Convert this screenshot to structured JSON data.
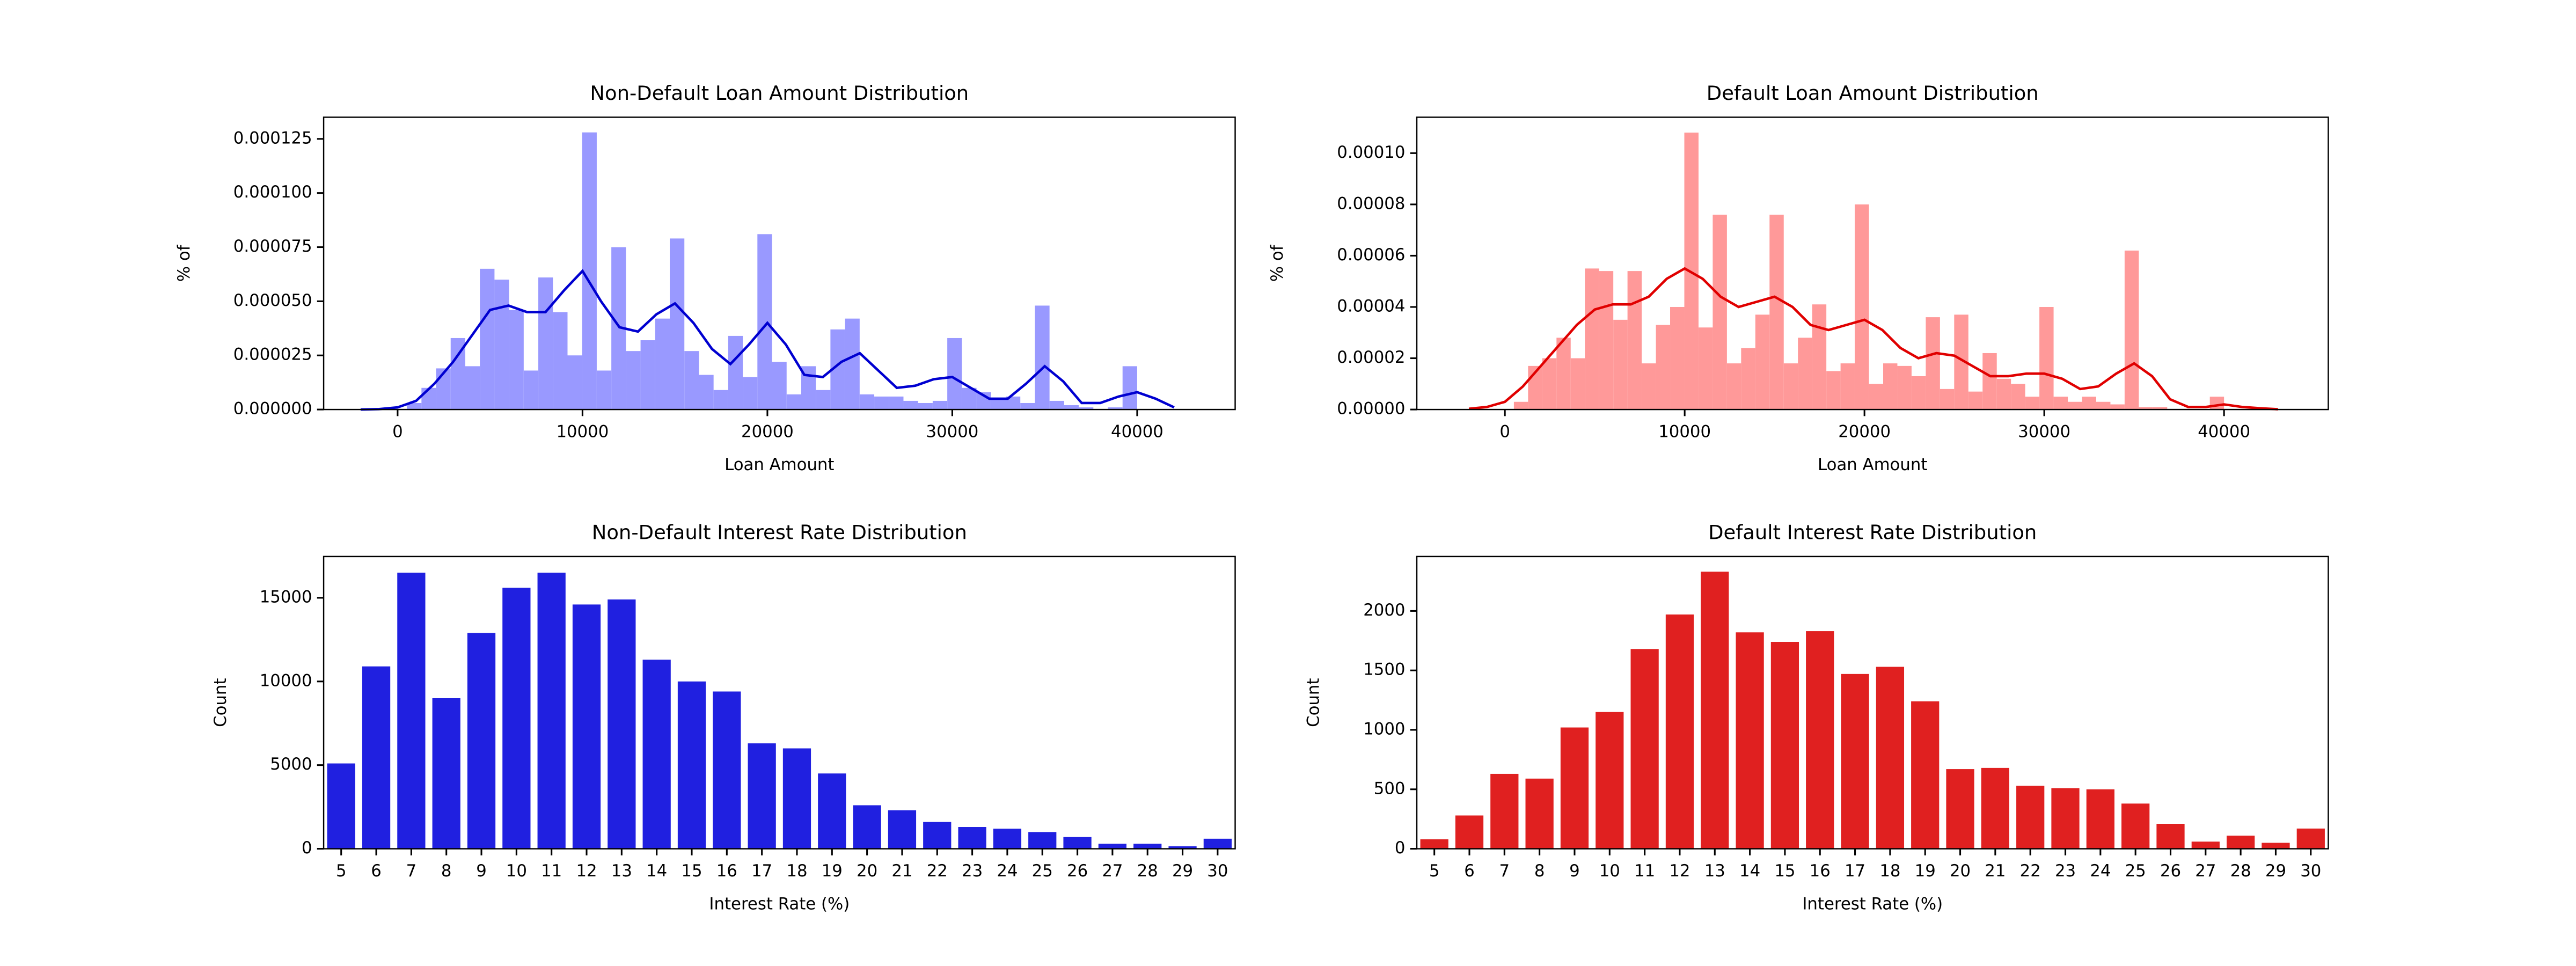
{
  "chart_data": [
    {
      "type": "histogram",
      "title": "Non-Default Loan Amount Distribution",
      "xlabel": "Loan Amount",
      "ylabel": "% of",
      "color": "#9999ff",
      "bins": [
        500,
        1290,
        2080,
        2870,
        3660,
        4450,
        5240,
        6030,
        6820,
        7610,
        8400,
        9190,
        9980,
        10770,
        11560,
        12350,
        13140,
        13930,
        14720,
        15510,
        16300,
        17090,
        17880,
        18670,
        19460,
        20250,
        21040,
        21830,
        22620,
        23410,
        24200,
        24990,
        25780,
        26570,
        27360,
        28150,
        28940,
        29730,
        30520,
        31310,
        32100,
        32890,
        33680,
        34470,
        35260,
        36050,
        36840,
        37630,
        38420,
        39210,
        40000
      ],
      "values": [
        3e-06,
        1e-05,
        1.9e-05,
        3.3e-05,
        2e-05,
        6.5e-05,
        6e-05,
        4.6e-05,
        1.8e-05,
        6.1e-05,
        4.5e-05,
        2.5e-05,
        0.000128,
        1.8e-05,
        7.5e-05,
        2.7e-05,
        3.2e-05,
        4.2e-05,
        7.9e-05,
        2.7e-05,
        1.6e-05,
        9e-06,
        3.4e-05,
        1.5e-05,
        8.1e-05,
        2.2e-05,
        7e-06,
        2e-05,
        9e-06,
        3.7e-05,
        4.2e-05,
        7e-06,
        6e-06,
        6e-06,
        4e-06,
        3e-06,
        4e-06,
        3.3e-05,
        1e-05,
        8e-06,
        5e-06,
        6e-06,
        3e-06,
        4.8e-05,
        4e-06,
        2e-06,
        1e-06,
        0,
        1e-06,
        2e-05
      ],
      "kde": {
        "color": "#0000d0",
        "x": [
          -2000,
          -1000,
          0,
          1000,
          2000,
          3000,
          4000,
          5000,
          6000,
          7000,
          8000,
          9000,
          10000,
          11000,
          12000,
          13000,
          14000,
          15000,
          16000,
          17000,
          18000,
          19000,
          20000,
          21000,
          22000,
          23000,
          24000,
          25000,
          26000,
          27000,
          28000,
          29000,
          30000,
          31000,
          32000,
          33000,
          34000,
          35000,
          36000,
          37000,
          38000,
          39000,
          40000,
          41000,
          42000
        ],
        "values": [
          0,
          2e-07,
          1e-06,
          4e-06,
          1.2e-05,
          2.2e-05,
          3.4e-05,
          4.6e-05,
          4.8e-05,
          4.5e-05,
          4.5e-05,
          5.5e-05,
          6.4e-05,
          5e-05,
          3.8e-05,
          3.6e-05,
          4.4e-05,
          4.9e-05,
          4e-05,
          2.8e-05,
          2.1e-05,
          3e-05,
          4e-05,
          3e-05,
          1.6e-05,
          1.5e-05,
          2.2e-05,
          2.6e-05,
          1.8e-05,
          1e-05,
          1.1e-05,
          1.4e-05,
          1.5e-05,
          1e-05,
          5e-06,
          5e-06,
          1.2e-05,
          2e-05,
          1.3e-05,
          3e-06,
          3e-06,
          6e-06,
          8e-06,
          5e-06,
          1e-06
        ]
      },
      "xlim": [
        -4000,
        45300
      ],
      "xticks": [
        0,
        10000,
        20000,
        30000,
        40000
      ],
      "ylim": [
        0,
        0.000135
      ],
      "yticks": [
        {
          "value": 0,
          "label": "0.000000"
        },
        {
          "value": 2.5e-05,
          "label": "0.000025"
        },
        {
          "value": 5e-05,
          "label": "0.000050"
        },
        {
          "value": 7.5e-05,
          "label": "0.000075"
        },
        {
          "value": 0.0001,
          "label": "0.000100"
        },
        {
          "value": 0.000125,
          "label": "0.000125"
        }
      ]
    },
    {
      "type": "histogram",
      "title": "Default Loan Amount Distribution",
      "xlabel": "Loan Amount",
      "ylabel": "% of",
      "color": "#ff9999",
      "bins": [
        500,
        1290,
        2080,
        2870,
        3660,
        4450,
        5240,
        6030,
        6820,
        7610,
        8400,
        9190,
        9980,
        10770,
        11560,
        12350,
        13140,
        13930,
        14720,
        15510,
        16300,
        17090,
        17880,
        18670,
        19460,
        20250,
        21040,
        21830,
        22620,
        23410,
        24200,
        24990,
        25780,
        26570,
        27360,
        28150,
        28940,
        29730,
        30520,
        31310,
        32100,
        32890,
        33680,
        34470,
        35260,
        36050,
        36840,
        37630,
        38420,
        39210,
        40000
      ],
      "values": [
        3e-06,
        1.7e-05,
        2e-05,
        2.8e-05,
        2e-05,
        5.5e-05,
        5.4e-05,
        3.5e-05,
        5.4e-05,
        1.8e-05,
        3.3e-05,
        4e-05,
        0.000108,
        3.2e-05,
        7.6e-05,
        1.8e-05,
        2.4e-05,
        3.7e-05,
        7.6e-05,
        1.8e-05,
        2.8e-05,
        4.1e-05,
        1.5e-05,
        1.8e-05,
        8e-05,
        1e-05,
        1.8e-05,
        1.7e-05,
        1.3e-05,
        3.6e-05,
        8e-06,
        3.7e-05,
        7e-06,
        2.2e-05,
        1.2e-05,
        1e-05,
        5e-06,
        4e-05,
        5e-06,
        3e-06,
        5e-06,
        3e-06,
        2e-06,
        6.2e-05,
        1e-06,
        1e-06,
        0,
        0,
        0,
        5e-06
      ],
      "kde": {
        "color": "#e00000",
        "x": [
          -2000,
          -1000,
          0,
          1000,
          2000,
          3000,
          4000,
          5000,
          6000,
          7000,
          8000,
          9000,
          10000,
          11000,
          12000,
          13000,
          14000,
          15000,
          16000,
          17000,
          18000,
          19000,
          20000,
          21000,
          22000,
          23000,
          24000,
          25000,
          26000,
          27000,
          28000,
          29000,
          30000,
          31000,
          32000,
          33000,
          34000,
          35000,
          36000,
          37000,
          38000,
          39000,
          40000,
          41000,
          42000,
          43000
        ],
        "values": [
          3e-07,
          1e-06,
          3e-06,
          9e-06,
          1.7e-05,
          2.5e-05,
          3.3e-05,
          3.9e-05,
          4.1e-05,
          4.1e-05,
          4.4e-05,
          5.1e-05,
          5.5e-05,
          5.1e-05,
          4.4e-05,
          4e-05,
          4.2e-05,
          4.4e-05,
          4e-05,
          3.3e-05,
          3.1e-05,
          3.3e-05,
          3.5e-05,
          3.1e-05,
          2.4e-05,
          2e-05,
          2.2e-05,
          2.1e-05,
          1.7e-05,
          1.3e-05,
          1.3e-05,
          1.4e-05,
          1.4e-05,
          1.2e-05,
          8e-06,
          9e-06,
          1.4e-05,
          1.8e-05,
          1.3e-05,
          4e-06,
          1e-06,
          1e-06,
          2e-06,
          1e-06,
          5e-07,
          1e-07
        ]
      },
      "xlim": [
        -4900,
        45800
      ],
      "xticks": [
        0,
        10000,
        20000,
        30000,
        40000
      ],
      "ylim": [
        0,
        0.000114
      ],
      "yticks": [
        {
          "value": 0,
          "label": "0.00000"
        },
        {
          "value": 2e-05,
          "label": "0.00002"
        },
        {
          "value": 4e-05,
          "label": "0.00004"
        },
        {
          "value": 6e-05,
          "label": "0.00006"
        },
        {
          "value": 8e-05,
          "label": "0.00008"
        },
        {
          "value": 0.0001,
          "label": "0.00010"
        }
      ]
    },
    {
      "type": "bar",
      "title": "Non-Default Interest Rate Distribution",
      "xlabel": "Interest Rate (%)",
      "ylabel": "Count",
      "color": "#2020e0",
      "categories": [
        "5",
        "6",
        "7",
        "8",
        "9",
        "10",
        "11",
        "12",
        "13",
        "14",
        "15",
        "16",
        "17",
        "18",
        "19",
        "20",
        "21",
        "22",
        "23",
        "24",
        "25",
        "26",
        "27",
        "28",
        "29",
        "30"
      ],
      "values": [
        5100,
        10900,
        16500,
        9000,
        12900,
        15600,
        16500,
        14600,
        14900,
        11300,
        10000,
        9400,
        6300,
        6000,
        4500,
        2600,
        2300,
        1600,
        1300,
        1200,
        1000,
        700,
        300,
        300,
        150,
        600
      ],
      "ylim": [
        0,
        17470
      ],
      "yticks": [
        0,
        5000,
        10000,
        15000
      ]
    },
    {
      "type": "bar",
      "title": "Default Interest Rate Distribution",
      "xlabel": "Interest Rate (%)",
      "ylabel": "Count",
      "color": "#e02020",
      "categories": [
        "5",
        "6",
        "7",
        "8",
        "9",
        "10",
        "11",
        "12",
        "13",
        "14",
        "15",
        "16",
        "17",
        "18",
        "19",
        "20",
        "21",
        "22",
        "23",
        "24",
        "25",
        "26",
        "27",
        "28",
        "29",
        "30"
      ],
      "values": [
        80,
        280,
        630,
        590,
        1020,
        1150,
        1680,
        1970,
        2330,
        1820,
        1740,
        1830,
        1470,
        1530,
        1240,
        670,
        680,
        530,
        510,
        500,
        380,
        210,
        60,
        110,
        50,
        170
      ],
      "ylim": [
        0,
        2458
      ],
      "yticks": [
        0,
        500,
        1000,
        1500,
        2000
      ]
    }
  ]
}
